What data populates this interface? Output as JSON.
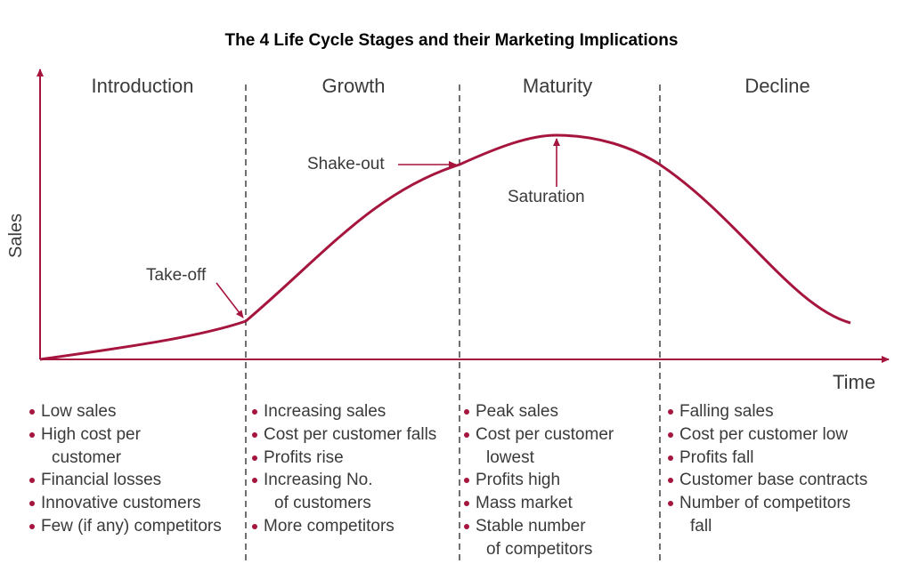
{
  "title": "The 4 Life Cycle Stages and their Marketing Implications",
  "axes": {
    "y": "Sales",
    "x": "Time"
  },
  "stages": [
    "Introduction",
    "Growth",
    "Maturity",
    "Decline"
  ],
  "annotations": {
    "takeoff": "Take-off",
    "shakeout": "Shake-out",
    "saturation": "Saturation"
  },
  "colors": {
    "curve": "#a5153d"
  },
  "lists": [
    [
      {
        "t": "Low sales"
      },
      {
        "t": "High cost per"
      },
      {
        "t": "customer",
        "c": 1
      },
      {
        "t": "Financial losses"
      },
      {
        "t": "Innovative customers"
      },
      {
        "t": "Few (if any) competitors"
      }
    ],
    [
      {
        "t": "Increasing sales"
      },
      {
        "t": "Cost per customer falls"
      },
      {
        "t": "Profits rise"
      },
      {
        "t": "Increasing No."
      },
      {
        "t": "of customers",
        "c": 1
      },
      {
        "t": "More competitors"
      }
    ],
    [
      {
        "t": "Peak sales"
      },
      {
        "t": "Cost per customer"
      },
      {
        "t": "lowest",
        "c": 1
      },
      {
        "t": "Profits high"
      },
      {
        "t": "Mass market"
      },
      {
        "t": "Stable number"
      },
      {
        "t": "of competitors",
        "c": 1
      }
    ],
    [
      {
        "t": "Falling sales"
      },
      {
        "t": "Cost per customer low"
      },
      {
        "t": "Profits fall"
      },
      {
        "t": "Customer base contracts"
      },
      {
        "t": "Number of competitors"
      },
      {
        "t": "fall",
        "c": 1
      }
    ]
  ]
}
